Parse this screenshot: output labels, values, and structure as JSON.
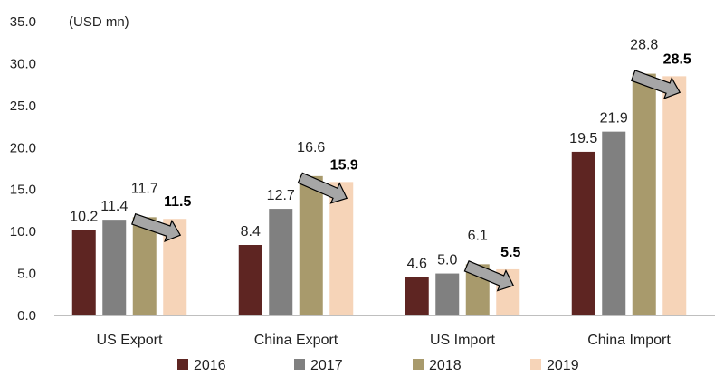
{
  "chart_data": {
    "type": "bar",
    "unit_label": "(USD mn)",
    "categories": [
      "US Export",
      "China Export",
      "US Import",
      "China Import"
    ],
    "series": [
      {
        "name": "2016",
        "color": "#5e2522",
        "values": [
          10.2,
          8.4,
          4.6,
          19.5
        ]
      },
      {
        "name": "2017",
        "color": "#808080",
        "values": [
          11.4,
          12.7,
          5.0,
          21.9
        ]
      },
      {
        "name": "2018",
        "color": "#a89a6c",
        "values": [
          11.7,
          16.6,
          6.1,
          28.8
        ]
      },
      {
        "name": "2019",
        "color": "#f6d4b8",
        "values": [
          11.5,
          15.9,
          5.5,
          28.5
        ]
      }
    ],
    "highlight_series": "2019",
    "ylim": [
      0,
      35
    ],
    "yticks": [
      "0.0",
      "5.0",
      "10.0",
      "15.0",
      "20.0",
      "25.0",
      "30.0",
      "35.0"
    ],
    "grid": false,
    "legend_position": "bottom",
    "annotation": "down-arrow-from-2018-to-2019",
    "arrow_color": "#a6a6a6"
  }
}
